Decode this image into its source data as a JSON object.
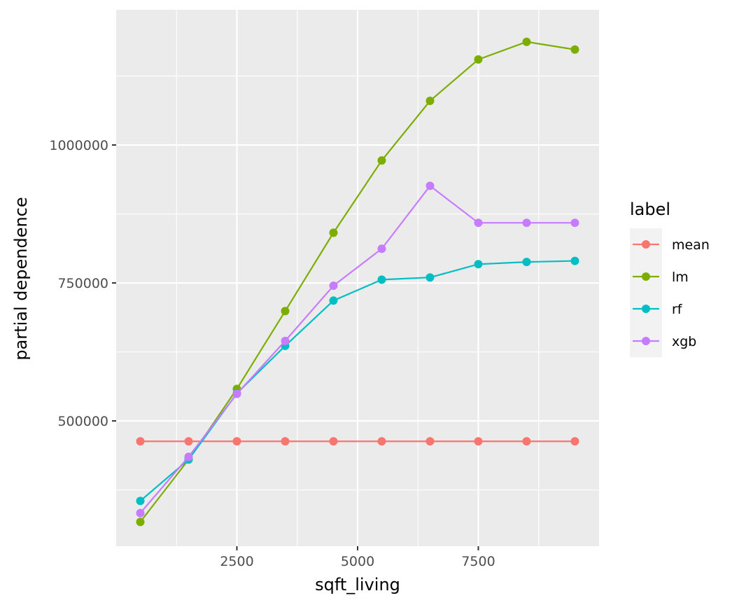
{
  "chart_data": {
    "type": "line",
    "xlabel": "sqft_living",
    "ylabel": "partial dependence",
    "legend_title": "label",
    "legend_position": "right",
    "grid": true,
    "panel_background": "#ebebeb",
    "xlim": [
      0,
      10000
    ],
    "ylim": [
      273000,
      1245000
    ],
    "x_ticks": [
      2500,
      5000,
      7500
    ],
    "x_tick_labels": [
      "2500",
      "5000",
      "7500"
    ],
    "y_ticks": [
      500000,
      750000,
      1000000
    ],
    "y_tick_labels": [
      "500000",
      "750000",
      "1000000"
    ],
    "x": [
      500,
      1500,
      2500,
      3500,
      4500,
      5500,
      6500,
      7500,
      8500,
      9500
    ],
    "series": [
      {
        "name": "mean",
        "color": "#F8766D",
        "values": [
          463000,
          463000,
          463000,
          463000,
          463000,
          463000,
          463000,
          463000,
          463000,
          463000
        ]
      },
      {
        "name": "lm",
        "color": "#7CAE00",
        "values": [
          317000,
          430000,
          558000,
          699000,
          841000,
          972000,
          1080000,
          1155000,
          1187000,
          1173000
        ]
      },
      {
        "name": "rf",
        "color": "#00BFC4",
        "values": [
          355000,
          430000,
          550000,
          636000,
          718000,
          756000,
          760000,
          784000,
          788000,
          790000
        ]
      },
      {
        "name": "xgb",
        "color": "#C77CFF",
        "values": [
          333000,
          435000,
          549000,
          645000,
          745000,
          812000,
          926000,
          859000,
          859000,
          859000
        ]
      }
    ]
  }
}
